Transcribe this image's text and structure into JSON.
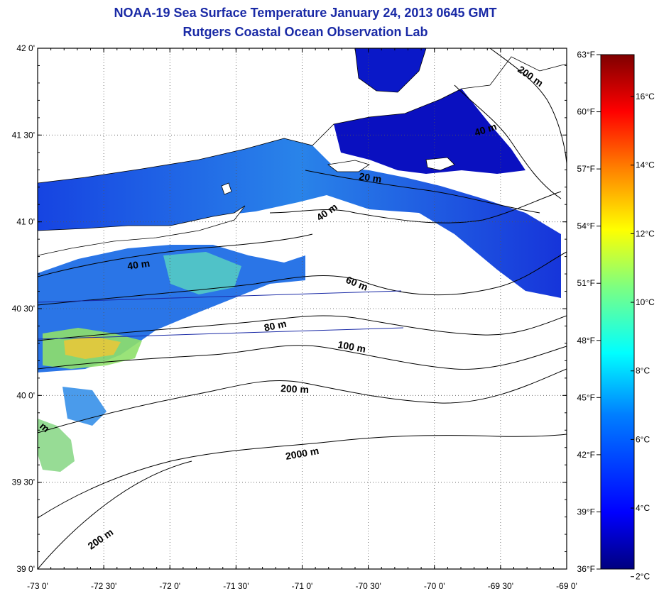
{
  "header": {
    "title": "NOAA-19 Sea Surface Temperature January 24, 2013 0645 GMT",
    "subtitle": "Rutgers Coastal Ocean Observation Lab"
  },
  "map": {
    "lat_ticks": [
      "42 0'",
      "41 30'",
      "41 0'",
      "40 30'",
      "40 0'",
      "39 30'",
      "39 0'"
    ],
    "lon_ticks": [
      "-73 0'",
      "-72 30'",
      "-72 0'",
      "-71 30'",
      "-71 0'",
      "-70 30'",
      "-70 0'",
      "-69 30'",
      "-69 0'"
    ],
    "lat_range": [
      39.0,
      42.0
    ],
    "lon_range": [
      -73.0,
      -69.0
    ],
    "grid": true,
    "land_color": "#ffffff",
    "contour_labels": [
      "200 m",
      "40 m",
      "20 m",
      "40 m",
      "40 m",
      "60 m",
      "80 m",
      "100 m",
      "200 m",
      "2000 m",
      "m",
      "200 m"
    ]
  },
  "colorbar": {
    "fahrenheit_labels": [
      "63°F",
      "60°F",
      "57°F",
      "54°F",
      "51°F",
      "48°F",
      "45°F",
      "42°F",
      "39°F",
      "36°F"
    ],
    "celsius_labels": [
      "16°C",
      "14°C",
      "12°C",
      "10°C",
      "8°C",
      "6°C",
      "4°C",
      "2°C"
    ],
    "f_range": [
      36,
      63
    ],
    "colormap": "jet",
    "colors": [
      "#00007f",
      "#0000ff",
      "#007fff",
      "#00ffff",
      "#7fff7f",
      "#ffff00",
      "#ff7f00",
      "#ff0000",
      "#7f0000"
    ]
  }
}
